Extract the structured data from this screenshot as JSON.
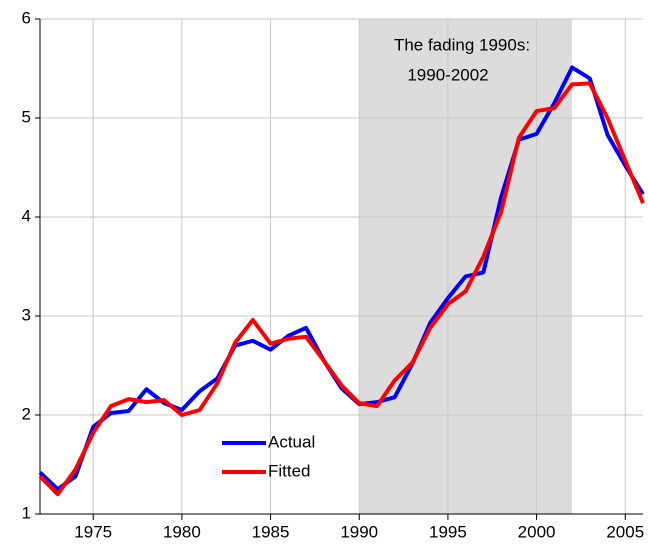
{
  "chart_data": {
    "type": "line",
    "annotation": [
      "The fading 1990s:",
      "1990-2002"
    ],
    "shaded_region": [
      1990,
      2002
    ],
    "x": [
      1972,
      1973,
      1974,
      1975,
      1976,
      1977,
      1978,
      1979,
      1980,
      1981,
      1982,
      1983,
      1984,
      1985,
      1986,
      1987,
      1988,
      1989,
      1990,
      1991,
      1992,
      1993,
      1994,
      1995,
      1996,
      1997,
      1998,
      1999,
      2000,
      2001,
      2002,
      2003,
      2004,
      2005,
      2006
    ],
    "series": [
      {
        "name": "Actual",
        "color": "#0000ff",
        "values": [
          1.42,
          1.25,
          1.38,
          1.88,
          2.02,
          2.04,
          2.26,
          2.12,
          2.05,
          2.24,
          2.37,
          2.7,
          2.75,
          2.66,
          2.8,
          2.88,
          2.55,
          2.27,
          2.11,
          2.13,
          2.18,
          2.52,
          2.93,
          3.18,
          3.4,
          3.44,
          4.2,
          4.78,
          4.84,
          5.15,
          5.51,
          5.4,
          4.83,
          4.52,
          4.23
        ]
      },
      {
        "name": "Fitted",
        "color": "#ff0000",
        "values": [
          1.38,
          1.2,
          1.45,
          1.82,
          2.09,
          2.16,
          2.13,
          2.15,
          2.0,
          2.05,
          2.32,
          2.73,
          2.96,
          2.72,
          2.77,
          2.79,
          2.55,
          2.3,
          2.12,
          2.09,
          2.35,
          2.53,
          2.88,
          3.12,
          3.25,
          3.6,
          4.05,
          4.8,
          5.07,
          5.1,
          5.34,
          5.35,
          5.0,
          4.57,
          4.14
        ]
      }
    ],
    "xlim": [
      1972,
      2006
    ],
    "xticks": [
      1975,
      1980,
      1985,
      1990,
      1995,
      2000,
      2005
    ],
    "ylim": [
      1,
      6
    ],
    "yticks": [
      1,
      2,
      3,
      4,
      5,
      6
    ],
    "grid": true
  }
}
